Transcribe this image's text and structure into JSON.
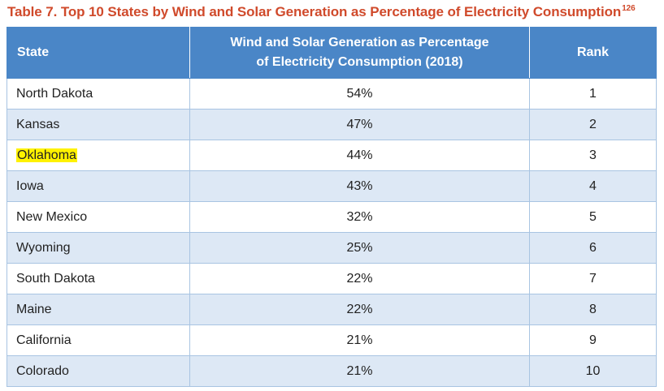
{
  "caption": {
    "title": "Table 7. Top 10 States by Wind and Solar Generation as Percentage of Electricity Consumption",
    "footnote": "126"
  },
  "table": {
    "headers": {
      "state": "State",
      "pct_line1": "Wind and Solar Generation as Percentage",
      "pct_line2": "of Electricity Consumption (2018)",
      "rank": "Rank"
    },
    "rows": [
      {
        "state": "North Dakota",
        "pct": "54%",
        "rank": "1"
      },
      {
        "state": "Kansas",
        "pct": "47%",
        "rank": "2"
      },
      {
        "state": "Oklahoma",
        "pct": "44%",
        "rank": "3",
        "highlighted": true
      },
      {
        "state": "Iowa",
        "pct": "43%",
        "rank": "4"
      },
      {
        "state": "New Mexico",
        "pct": "32%",
        "rank": "5"
      },
      {
        "state": "Wyoming",
        "pct": "25%",
        "rank": "6"
      },
      {
        "state": "South Dakota",
        "pct": "22%",
        "rank": "7"
      },
      {
        "state": "Maine",
        "pct": "22%",
        "rank": "8"
      },
      {
        "state": "California",
        "pct": "21%",
        "rank": "9"
      },
      {
        "state": "Colorado",
        "pct": "21%",
        "rank": "10"
      }
    ]
  },
  "colors": {
    "caption": "#d04a2b",
    "header_bg": "#4a86c7",
    "stripe_bg": "#dde8f5",
    "highlight": "#fff200"
  }
}
